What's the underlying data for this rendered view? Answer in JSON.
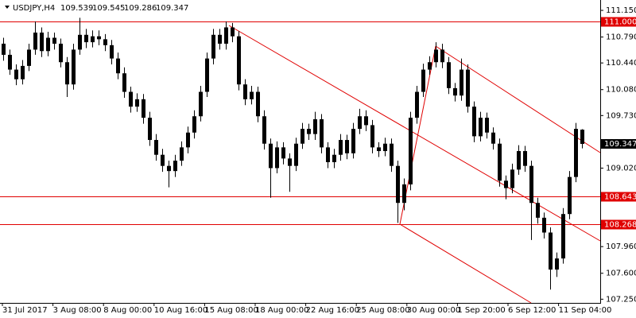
{
  "chart_data": {
    "type": "candlestick",
    "title": "USDJPY,H4",
    "color": "#000000",
    "level_color": "#e00000",
    "ylim": [
      107.2,
      111.29
    ],
    "yticks": [
      {
        "value": 111.15,
        "label": "111.150"
      },
      {
        "value": 110.79,
        "label": "110.790"
      },
      {
        "value": 110.44,
        "label": "110.440"
      },
      {
        "value": 110.08,
        "label": "110.080"
      },
      {
        "value": 109.73,
        "label": "109.730"
      },
      {
        "value": 109.02,
        "label": "109.020"
      },
      {
        "value": 107.96,
        "label": "107.960"
      },
      {
        "value": 107.6,
        "label": "107.600"
      },
      {
        "value": 107.25,
        "label": "107.250"
      }
    ],
    "levels": [
      {
        "value": 111.0,
        "label": "111.000"
      },
      108.643,
      108.268
    ],
    "x_labels": [
      "31 Jul 2017",
      "3 Aug 08:00",
      "8 Aug 00:00",
      "10 Aug 16:00",
      "15 Aug 08:00",
      "18 Aug 00:00",
      "22 Aug 16:00",
      "25 Aug 08:00",
      "30 Aug 00:00",
      "1 Sep 20:00",
      "6 Sep 12:00",
      "11 Sep 04:00"
    ],
    "open": [
      110.7,
      110.55,
      110.35,
      110.22,
      110.4,
      110.62,
      110.85,
      110.6,
      110.78,
      110.7,
      110.45,
      110.15,
      110.62,
      110.82,
      110.72,
      110.8,
      110.76,
      110.68,
      110.5,
      110.3,
      110.05,
      109.85,
      109.95,
      109.7,
      109.4,
      109.2,
      109.05,
      108.98,
      109.12,
      109.3,
      109.5,
      109.72,
      110.05,
      110.5,
      110.82,
      110.7,
      110.92,
      110.8,
      110.15,
      109.95,
      110.05,
      109.72,
      109.35,
      109.02,
      109.3,
      109.15,
      109.05,
      109.35,
      109.55,
      109.48,
      109.68,
      109.3,
      109.1,
      109.2,
      109.4,
      109.22,
      109.55,
      109.72,
      109.6,
      109.3,
      109.25,
      109.35,
      109.05,
      108.55,
      108.8,
      109.7,
      110.05,
      110.35,
      110.45,
      110.62,
      110.45,
      110.1,
      110.0,
      110.35,
      109.85,
      109.45,
      109.7,
      109.5,
      109.35,
      108.85,
      108.75,
      109.0,
      109.25,
      109.05,
      108.55,
      108.35,
      108.15,
      107.65,
      107.8,
      108.4,
      108.9,
      109.539
    ],
    "high": [
      110.78,
      110.62,
      110.42,
      110.48,
      110.7,
      111.0,
      110.92,
      110.86,
      110.85,
      110.77,
      110.52,
      110.7,
      111.05,
      110.9,
      110.88,
      110.88,
      110.83,
      110.75,
      110.58,
      110.38,
      110.12,
      110.03,
      110.02,
      109.78,
      109.48,
      109.28,
      109.12,
      109.2,
      109.38,
      109.58,
      109.8,
      110.13,
      110.58,
      110.9,
      110.9,
      111.0,
      110.98,
      110.87,
      110.22,
      110.13,
      110.12,
      109.8,
      109.42,
      109.38,
      109.37,
      109.22,
      109.43,
      109.63,
      109.62,
      109.78,
      109.75,
      109.37,
      109.28,
      109.48,
      109.47,
      109.63,
      109.82,
      109.8,
      109.67,
      109.37,
      109.43,
      109.42,
      109.12,
      108.88,
      109.78,
      110.13,
      110.43,
      110.53,
      110.72,
      110.7,
      110.52,
      110.17,
      110.5,
      110.42,
      109.92,
      109.78,
      109.77,
      109.57,
      109.42,
      108.92,
      109.08,
      109.33,
      109.32,
      109.12,
      108.62,
      108.42,
      108.22,
      107.88,
      108.48,
      108.98,
      109.63,
      109.545
    ],
    "low": [
      110.47,
      110.28,
      110.14,
      110.15,
      110.33,
      110.55,
      110.52,
      110.53,
      110.62,
      110.38,
      109.98,
      110.08,
      110.55,
      110.64,
      110.65,
      110.68,
      110.6,
      110.42,
      110.22,
      109.97,
      109.77,
      109.78,
      109.62,
      109.32,
      109.12,
      108.97,
      108.76,
      108.9,
      109.05,
      109.22,
      109.42,
      109.65,
      109.98,
      110.42,
      110.62,
      110.62,
      110.72,
      110.07,
      109.87,
      109.88,
      109.64,
      109.27,
      108.62,
      108.95,
      109.07,
      108.7,
      108.98,
      109.28,
      109.4,
      109.4,
      109.22,
      109.02,
      109.02,
      109.12,
      109.14,
      109.15,
      109.48,
      109.52,
      109.22,
      109.17,
      109.18,
      108.97,
      108.28,
      108.45,
      108.72,
      109.62,
      109.98,
      110.28,
      110.38,
      110.37,
      110.02,
      109.92,
      109.93,
      109.77,
      109.37,
      109.38,
      109.42,
      109.27,
      108.77,
      108.6,
      108.68,
      108.93,
      108.97,
      108.05,
      108.27,
      108.07,
      107.38,
      107.55,
      107.73,
      108.33,
      108.83,
      109.286
    ],
    "close": [
      110.55,
      110.35,
      110.22,
      110.4,
      110.62,
      110.85,
      110.6,
      110.78,
      110.7,
      110.45,
      110.15,
      110.62,
      110.82,
      110.72,
      110.8,
      110.76,
      110.68,
      110.5,
      110.3,
      110.05,
      109.85,
      109.95,
      109.7,
      109.4,
      109.2,
      109.05,
      108.98,
      109.12,
      109.3,
      109.5,
      109.72,
      110.05,
      110.5,
      110.82,
      110.7,
      110.92,
      110.8,
      110.15,
      109.95,
      110.05,
      109.72,
      109.35,
      109.02,
      109.3,
      109.15,
      109.05,
      109.35,
      109.55,
      109.48,
      109.68,
      109.3,
      109.1,
      109.2,
      109.4,
      109.22,
      109.55,
      109.72,
      109.6,
      109.3,
      109.25,
      109.35,
      109.05,
      108.55,
      108.8,
      109.7,
      110.05,
      110.35,
      110.45,
      110.62,
      110.45,
      110.1,
      110.0,
      110.35,
      109.85,
      109.45,
      109.7,
      109.5,
      109.35,
      108.85,
      108.75,
      109.0,
      109.25,
      109.05,
      108.55,
      108.35,
      108.15,
      107.65,
      107.8,
      108.4,
      108.9,
      109.55,
      109.347
    ]
  }
}
